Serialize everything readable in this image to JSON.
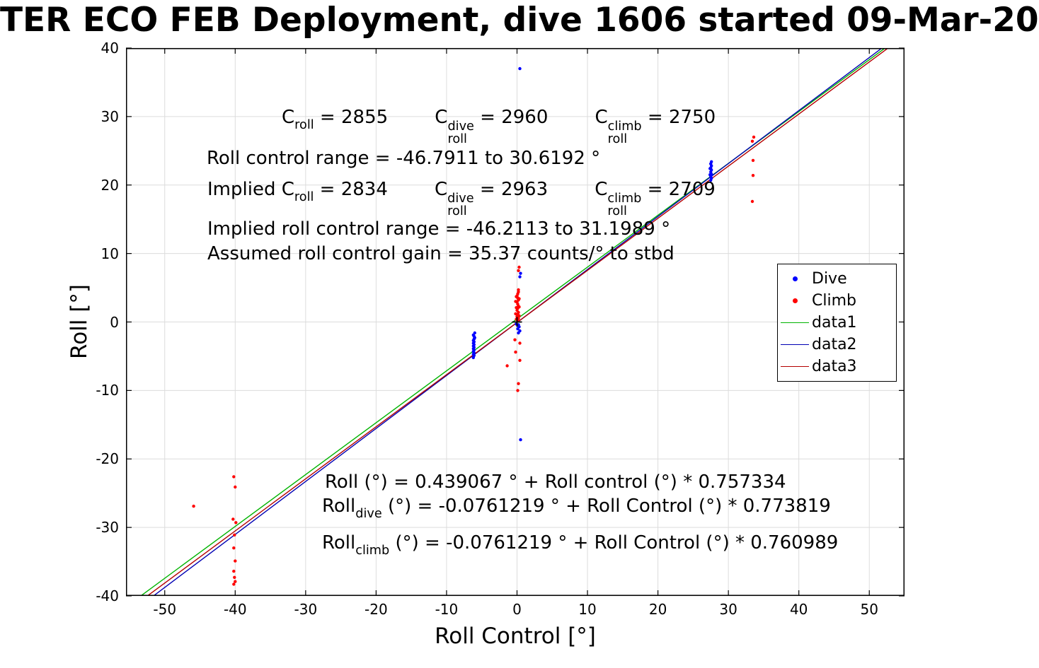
{
  "chart_data": {
    "type": "scatter",
    "title": "TER ECO FEB Deployment, dive 1606 started 09-Mar-20",
    "xlabel": "Roll Control [°]",
    "ylabel": "Roll [°]",
    "xlim": [
      -55.5,
      55
    ],
    "ylim": [
      -40,
      40
    ],
    "xticks": [
      -50,
      -40,
      -30,
      -20,
      -10,
      0,
      10,
      20,
      30,
      40,
      50
    ],
    "yticks": [
      -40,
      -30,
      -20,
      -10,
      0,
      10,
      20,
      30,
      40
    ],
    "grid": true,
    "colors": {
      "dive": "#0000ff",
      "climb": "#ff0000",
      "data1": "#00b400",
      "data2": "#0000b4",
      "data3": "#b40000",
      "gridline": "#dcdcdc",
      "axis": "#000000"
    },
    "legend": [
      {
        "label": "Dive",
        "marker": "dot",
        "color": "#0000ff"
      },
      {
        "label": "Climb",
        "marker": "dot",
        "color": "#ff0000"
      },
      {
        "label": "data1",
        "marker": "line",
        "color": "#00b400"
      },
      {
        "label": "data2",
        "marker": "line",
        "color": "#0000b4"
      },
      {
        "label": "data3",
        "marker": "line",
        "color": "#b40000"
      }
    ],
    "series": [
      {
        "name": "Dive",
        "type": "scatter",
        "color": "#0000ff",
        "points": [
          [
            0.4,
            37.0
          ],
          [
            -6.2,
            -5.2
          ],
          [
            -6.1,
            -4.9
          ],
          [
            -6.2,
            -4.7
          ],
          [
            -6.1,
            -4.5
          ],
          [
            -6.2,
            -4.3
          ],
          [
            -6.1,
            -4.1
          ],
          [
            -6.2,
            -3.9
          ],
          [
            -6.1,
            -3.7
          ],
          [
            -6.2,
            -3.5
          ],
          [
            -6.1,
            -3.3
          ],
          [
            -6.2,
            -3.1
          ],
          [
            -6.1,
            -2.9
          ],
          [
            -6.2,
            -2.7
          ],
          [
            -6.1,
            -2.5
          ],
          [
            -6.0,
            -2.3
          ],
          [
            -6.1,
            -2.1
          ],
          [
            -6.2,
            -1.9
          ],
          [
            -6.0,
            -1.6
          ],
          [
            0.5,
            7.1
          ],
          [
            0.4,
            6.6
          ],
          [
            0.2,
            -0.4
          ],
          [
            0.3,
            -0.7
          ],
          [
            0.1,
            -1.0
          ],
          [
            0.4,
            -1.3
          ],
          [
            0.2,
            -1.6
          ],
          [
            -0.1,
            -0.3
          ],
          [
            0.5,
            -17.2
          ],
          [
            27.5,
            20.7
          ],
          [
            27.6,
            21.0
          ],
          [
            27.5,
            21.3
          ],
          [
            27.6,
            21.6
          ],
          [
            27.5,
            21.9
          ],
          [
            27.6,
            22.2
          ],
          [
            27.5,
            22.5
          ],
          [
            27.6,
            22.8
          ],
          [
            27.5,
            23.1
          ],
          [
            27.6,
            23.4
          ],
          [
            27.4,
            21.5
          ],
          [
            27.4,
            22.4
          ]
        ]
      },
      {
        "name": "Climb",
        "type": "scatter",
        "color": "#ff0000",
        "points": [
          [
            0.1,
            0.2
          ],
          [
            0.2,
            0.5
          ],
          [
            0.0,
            0.8
          ],
          [
            0.1,
            1.1
          ],
          [
            0.2,
            1.4
          ],
          [
            0.0,
            1.7
          ],
          [
            0.1,
            2.0
          ],
          [
            0.2,
            2.3
          ],
          [
            0.1,
            2.6
          ],
          [
            0.0,
            2.9
          ],
          [
            0.2,
            3.2
          ],
          [
            0.1,
            3.5
          ],
          [
            0.0,
            3.8
          ],
          [
            0.1,
            4.1
          ],
          [
            0.2,
            4.4
          ],
          [
            -0.1,
            0.4
          ],
          [
            -0.2,
            1.2
          ],
          [
            -0.1,
            2.1
          ],
          [
            -0.2,
            3.0
          ],
          [
            -0.1,
            3.7
          ],
          [
            0.3,
            0.9
          ],
          [
            0.3,
            2.2
          ],
          [
            0.3,
            3.4
          ],
          [
            0.2,
            4.7
          ],
          [
            0.3,
            8.0
          ],
          [
            0.2,
            7.5
          ],
          [
            -0.3,
            -2.6
          ],
          [
            0.4,
            -3.1
          ],
          [
            -0.2,
            -4.4
          ],
          [
            0.4,
            -5.6
          ],
          [
            -1.4,
            -6.4
          ],
          [
            0.2,
            -9.0
          ],
          [
            0.1,
            -10.0
          ],
          [
            -40.2,
            -22.6
          ],
          [
            -40.0,
            -24.1
          ],
          [
            -40.3,
            -28.8
          ],
          [
            -39.9,
            -29.3
          ],
          [
            -40.1,
            -31.1
          ],
          [
            -40.2,
            -33.0
          ],
          [
            -40.0,
            -34.9
          ],
          [
            -40.2,
            -36.4
          ],
          [
            -40.1,
            -37.3
          ],
          [
            -40.0,
            -37.9
          ],
          [
            -40.2,
            -38.3
          ],
          [
            -45.9,
            -26.9
          ],
          [
            33.4,
            17.6
          ],
          [
            33.5,
            21.4
          ],
          [
            33.5,
            23.6
          ],
          [
            33.4,
            26.4
          ],
          [
            33.6,
            27.0
          ]
        ]
      }
    ],
    "fit_lines": [
      {
        "name": "data1",
        "color": "#00b400",
        "intercept": 0.439067,
        "slope": 0.757334
      },
      {
        "name": "data2",
        "color": "#0000b4",
        "intercept": -0.0761219,
        "slope": 0.773819
      },
      {
        "name": "data3",
        "color": "#b40000",
        "intercept": -0.0761219,
        "slope": 0.760989
      }
    ],
    "origin_marker": {
      "x": 0,
      "y": 0,
      "symbol": "+",
      "color": "#000000"
    },
    "annotations": [
      {
        "name": "c-roll-line",
        "left": 398,
        "top": 150,
        "segments": [
          {
            "t": "C"
          },
          {
            "sub": "roll"
          },
          {
            "t": " = 2855        "
          },
          {
            "t": "C"
          },
          {
            "ss": [
              "dive",
              "roll"
            ]
          },
          {
            "t": " = 2960        "
          },
          {
            "t": "C"
          },
          {
            "ss": [
              "climb",
              "roll"
            ]
          },
          {
            "t": " = 2750"
          }
        ]
      },
      {
        "name": "roll-control-range",
        "left": 292,
        "top": 208,
        "segments": [
          {
            "t": "Roll control range = -46.7911 to 30.6192 °"
          }
        ]
      },
      {
        "name": "implied-c-roll-line",
        "left": 293,
        "top": 252,
        "segments": [
          {
            "t": "Implied C"
          },
          {
            "sub": "roll"
          },
          {
            "t": " = 2834        "
          },
          {
            "t": "C"
          },
          {
            "ss": [
              "dive",
              "roll"
            ]
          },
          {
            "t": " = 2963        "
          },
          {
            "t": "C"
          },
          {
            "ss": [
              "climb",
              "roll"
            ]
          },
          {
            "t": " = 2709"
          }
        ]
      },
      {
        "name": "implied-roll-control-range",
        "left": 293,
        "top": 308,
        "segments": [
          {
            "t": "Implied roll control range = -46.2113 to 31.1989 °"
          }
        ]
      },
      {
        "name": "assumed-gain",
        "left": 293,
        "top": 343,
        "segments": [
          {
            "t": "Assumed roll control gain = 35.37 counts/° to stbd"
          }
        ]
      },
      {
        "name": "fit-equation-all",
        "left": 459,
        "top": 666,
        "segments": [
          {
            "t": "Roll (°) = 0.439067 ° + Roll control (°) * 0.757334"
          }
        ]
      },
      {
        "name": "fit-equation-dive",
        "left": 455,
        "top": 700,
        "segments": [
          {
            "t": "Roll"
          },
          {
            "sub": "dive"
          },
          {
            "t": " (°) = -0.0761219 ° + Roll Control (°) * 0.773819"
          }
        ]
      },
      {
        "name": "fit-equation-climb",
        "left": 455,
        "top": 752,
        "segments": [
          {
            "t": "Roll"
          },
          {
            "sub": "climb"
          },
          {
            "t": " (°) = -0.0761219 ° + Roll Control (°) * 0.760989"
          }
        ]
      }
    ]
  }
}
